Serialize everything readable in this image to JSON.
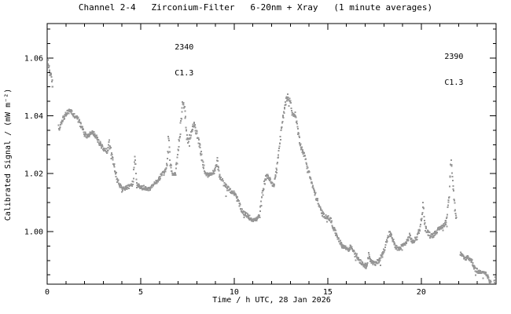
{
  "title": "Channel 2-4   Zirconium-Filter   6-20nm + Xray   (1 minute averages)",
  "chart_data": {
    "type": "scatter",
    "title": "Channel 2-4   Zirconium-Filter   6-20nm + Xray   (1 minute averages)",
    "xlabel": "Time / h UTC, 28 Jan 2026",
    "ylabel": "Calibrated Signal / (mW m⁻²)",
    "xlim": [
      0,
      24
    ],
    "ylim": [
      0.9818,
      1.0719
    ],
    "x_major_ticks": [
      0,
      5,
      10,
      15,
      20
    ],
    "x_tick_labels": [
      "0",
      "5",
      "10",
      "15",
      "20"
    ],
    "x_minor_step": 1,
    "y_major_ticks": [
      1.0,
      1.02,
      1.04,
      1.06
    ],
    "y_tick_labels": [
      "1.00",
      "1.02",
      "1.04",
      "1.06"
    ],
    "y_minor_step": 0.005,
    "grid": false,
    "legend": "none",
    "point_color": "#969696",
    "axis_color": "#000000",
    "background_color": "#ffffff",
    "sample_interval_minutes": 1,
    "series": [
      {
        "name": "zirconium-filter-signal",
        "control_points": [
          [
            0.0,
            1.0603
          ],
          [
            0.05,
            1.0585
          ],
          [
            0.1,
            1.0565
          ],
          [
            0.15,
            1.055
          ],
          [
            0.2,
            1.0538
          ],
          [
            0.28,
            1.0512
          ],
          [
            0.63,
            1.035
          ],
          [
            0.7,
            1.0368
          ],
          [
            0.8,
            1.0385
          ],
          [
            0.95,
            1.04
          ],
          [
            1.1,
            1.0412
          ],
          [
            1.25,
            1.042
          ],
          [
            1.4,
            1.0402
          ],
          [
            1.55,
            1.0398
          ],
          [
            1.7,
            1.0382
          ],
          [
            1.85,
            1.036
          ],
          [
            2.0,
            1.0338
          ],
          [
            2.15,
            1.033
          ],
          [
            2.3,
            1.0338
          ],
          [
            2.45,
            1.0342
          ],
          [
            2.6,
            1.033
          ],
          [
            2.75,
            1.031
          ],
          [
            2.9,
            1.0296
          ],
          [
            3.05,
            1.0284
          ],
          [
            3.2,
            1.0278
          ],
          [
            3.32,
            1.0308
          ],
          [
            3.45,
            1.0262
          ],
          [
            3.6,
            1.0225
          ],
          [
            3.75,
            1.0178
          ],
          [
            3.9,
            1.0158
          ],
          [
            4.05,
            1.0148
          ],
          [
            4.25,
            1.0152
          ],
          [
            4.45,
            1.0158
          ],
          [
            4.6,
            1.0168
          ],
          [
            4.68,
            1.0268
          ],
          [
            4.78,
            1.017
          ],
          [
            4.95,
            1.015
          ],
          [
            5.15,
            1.0152
          ],
          [
            5.35,
            1.0142
          ],
          [
            5.55,
            1.015
          ],
          [
            5.75,
            1.0165
          ],
          [
            5.95,
            1.018
          ],
          [
            6.15,
            1.0198
          ],
          [
            6.32,
            1.0208
          ],
          [
            6.42,
            1.024
          ],
          [
            6.5,
            1.033
          ],
          [
            6.58,
            1.0235
          ],
          [
            6.7,
            1.02
          ],
          [
            6.85,
            1.0198
          ],
          [
            6.98,
            1.026
          ],
          [
            7.1,
            1.034
          ],
          [
            7.23,
            1.0453
          ],
          [
            7.35,
            1.043
          ],
          [
            7.5,
            1.0305
          ],
          [
            7.65,
            1.033
          ],
          [
            7.85,
            1.0372
          ],
          [
            8.0,
            1.0338
          ],
          [
            8.15,
            1.03
          ],
          [
            8.3,
            1.0242
          ],
          [
            8.45,
            1.0205
          ],
          [
            8.6,
            1.0192
          ],
          [
            8.8,
            1.02
          ],
          [
            9.0,
            1.0212
          ],
          [
            9.1,
            1.0248
          ],
          [
            9.22,
            1.0192
          ],
          [
            9.4,
            1.0172
          ],
          [
            9.6,
            1.0152
          ],
          [
            9.8,
            1.0142
          ],
          [
            10.0,
            1.0132
          ],
          [
            10.2,
            1.0108
          ],
          [
            10.35,
            1.0078
          ],
          [
            10.55,
            1.0062
          ],
          [
            10.75,
            1.0052
          ],
          [
            10.95,
            1.0042
          ],
          [
            11.15,
            1.004
          ],
          [
            11.35,
            1.0052
          ],
          [
            11.5,
            1.0125
          ],
          [
            11.65,
            1.0182
          ],
          [
            11.8,
            1.0195
          ],
          [
            11.95,
            1.0172
          ],
          [
            12.1,
            1.0155
          ],
          [
            12.25,
            1.0205
          ],
          [
            12.4,
            1.0285
          ],
          [
            12.55,
            1.0365
          ],
          [
            12.7,
            1.0432
          ],
          [
            12.85,
            1.047
          ],
          [
            13.0,
            1.0452
          ],
          [
            13.12,
            1.04
          ],
          [
            13.28,
            1.0406
          ],
          [
            13.45,
            1.033
          ],
          [
            13.6,
            1.0288
          ],
          [
            13.78,
            1.0258
          ],
          [
            13.95,
            1.0215
          ],
          [
            14.15,
            1.0165
          ],
          [
            14.35,
            1.0125
          ],
          [
            14.55,
            1.0085
          ],
          [
            14.75,
            1.0058
          ],
          [
            14.95,
            1.005
          ],
          [
            15.15,
            1.0042
          ],
          [
            15.35,
            1.0005
          ],
          [
            15.55,
            0.9978
          ],
          [
            15.75,
            0.9952
          ],
          [
            15.95,
            0.9944
          ],
          [
            16.1,
            0.9938
          ],
          [
            16.25,
            0.9948
          ],
          [
            16.45,
            0.9928
          ],
          [
            16.65,
            0.9905
          ],
          [
            16.85,
            0.989
          ],
          [
            17.05,
            0.988
          ],
          [
            17.2,
            0.9918
          ],
          [
            17.35,
            0.9895
          ],
          [
            17.55,
            0.9888
          ],
          [
            17.75,
            0.9902
          ],
          [
            17.95,
            0.9925
          ],
          [
            18.15,
            0.9965
          ],
          [
            18.3,
            0.9995
          ],
          [
            18.45,
            0.9978
          ],
          [
            18.6,
            0.9948
          ],
          [
            18.8,
            0.9938
          ],
          [
            19.0,
            0.995
          ],
          [
            19.2,
            0.9962
          ],
          [
            19.38,
            0.9985
          ],
          [
            19.55,
            0.9962
          ],
          [
            19.75,
            0.9978
          ],
          [
            19.95,
            1.0015
          ],
          [
            20.1,
            1.009
          ],
          [
            20.22,
            1.0012
          ],
          [
            20.4,
            0.9992
          ],
          [
            20.6,
            0.9985
          ],
          [
            20.8,
            1.0
          ],
          [
            21.0,
            1.001
          ],
          [
            21.2,
            1.0022
          ],
          [
            21.35,
            1.0038
          ],
          [
            21.5,
            1.0125
          ],
          [
            21.6,
            1.0262
          ],
          [
            21.68,
            1.0185
          ],
          [
            21.78,
            1.0092
          ],
          [
            21.88,
            1.004
          ],
          [
            22.1,
            0.9922
          ],
          [
            22.3,
            0.9906
          ],
          [
            22.5,
            0.9912
          ],
          [
            22.7,
            0.9898
          ],
          [
            22.9,
            0.9868
          ],
          [
            23.1,
            0.986
          ],
          [
            23.3,
            0.9864
          ],
          [
            23.5,
            0.985
          ],
          [
            23.7,
            0.9822
          ],
          [
            23.85,
            0.9806
          ],
          [
            23.98,
            0.9845
          ]
        ]
      }
    ],
    "data_gaps_hours": [
      [
        0.3,
        0.61
      ],
      [
        21.9,
        22.08
      ]
    ],
    "annotations": [
      {
        "lines": [
          "2340",
          "C1.3"
        ],
        "hour": 6.82,
        "value": 1.071
      },
      {
        "lines": [
          "2390",
          "C1.3"
        ],
        "hour": 21.24,
        "value": 1.0678
      }
    ]
  }
}
